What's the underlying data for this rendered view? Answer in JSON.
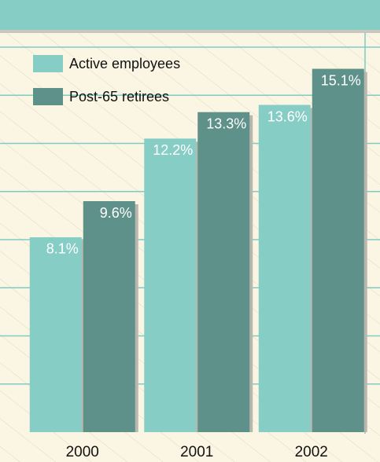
{
  "chart_data": {
    "type": "bar",
    "categories": [
      "2000",
      "2001",
      "2002"
    ],
    "series": [
      {
        "name": "Active employees",
        "color": "#86cdc5",
        "values": [
          8.1,
          12.2,
          13.6
        ],
        "value_labels": [
          "8.1%",
          "12.2%",
          "13.6%"
        ]
      },
      {
        "name": "Post-65 retirees",
        "color": "#5e9189",
        "values": [
          9.6,
          13.3,
          15.1
        ],
        "value_labels": [
          "9.6%",
          "13.3%",
          "15.1%"
        ]
      }
    ],
    "ylim": [
      0,
      16
    ],
    "yticks": [
      2,
      4,
      6,
      8,
      10,
      12,
      14,
      16
    ],
    "grid": true,
    "legend": "top-left"
  }
}
